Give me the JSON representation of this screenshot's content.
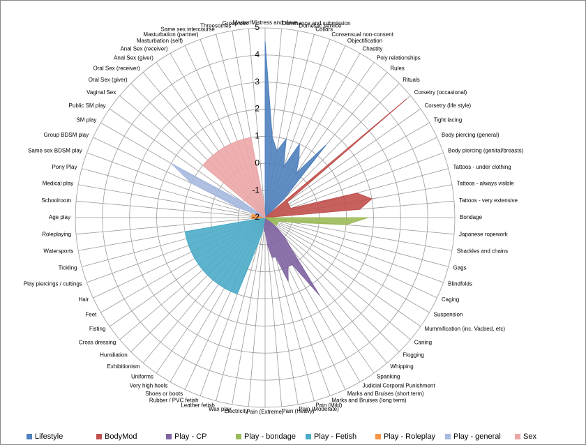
{
  "chart_data": {
    "type": "radar",
    "categories": [
      "Master/Mistress and slave",
      "Dominance and submission",
      "Domestic service",
      "Collars",
      "Consensual non-consent",
      "Objectification",
      "Chastity",
      "Poly relationships",
      "Rules",
      "Rituals",
      "Corsetry (occasional)",
      "Corsetry (life style)",
      "Tight lacing",
      "Body piercing (general)",
      "Body piercing (genital/breasts)",
      "Tattoos - under clothing",
      "Tattoos - always visible",
      "Tattoos - very extensive",
      "Bondage",
      "Japanese ropework",
      "Shackles and chains",
      "Gags",
      "Blindfolds",
      "Caging",
      "Suspension",
      "Mummification (inc. Vacbed, etc)",
      "Caning",
      "Flogging",
      "Whipping",
      "Spanking",
      "Judicial Corporal Punishment",
      "Marks and Bruises (short term)",
      "Marks and Bruises (long term)",
      "Pain (Mild)",
      "Pain (Moderate)",
      "Pain (Heavy)",
      "Pain (Extreme)",
      "Electricity",
      "Wax play",
      "Leather fetish",
      "Rubber / PVC fetish",
      "Shoes or boots",
      "Very high heels",
      "Uniforms",
      "Exhibitionism",
      "Humiliation",
      "Cross dressing",
      "Fisting",
      "Feet",
      "Hair",
      "Play piercings / cuttings",
      "Tickling",
      "Watersports",
      "Roleplaying",
      "Age play",
      "Schoolroom",
      "Medical play",
      "Pony Play",
      "Same sex BDSM play",
      "Group BDSM play",
      "SM play",
      "Public SM play",
      "Vaginal Sex",
      "Oral Sex (giver)",
      "Oral Sex (receiver)",
      "Anal Sex (giver)",
      "Anal Sex (receiver)",
      "Masturbation (self)",
      "Masturbation (partner)",
      "Same sex intercourse",
      "Threesomes",
      "Group sex"
    ],
    "series": [
      {
        "name": "Lifestyle",
        "color": "#4f81bd",
        "values": [
          4.5,
          1,
          0.5,
          1,
          0,
          1,
          0.5,
          0,
          1.5,
          -1,
          null,
          null,
          null,
          null,
          null,
          null,
          null,
          null,
          null,
          null,
          null,
          null,
          null,
          null,
          null,
          null,
          null,
          null,
          null,
          null,
          null,
          null,
          null,
          null,
          null,
          null,
          null,
          null,
          null,
          null,
          null,
          null,
          null,
          null,
          null,
          null,
          null,
          null,
          null,
          null,
          null,
          null,
          null,
          null,
          null,
          null,
          null,
          null,
          null,
          null,
          null,
          null,
          null,
          null,
          null,
          null,
          null,
          null,
          null,
          null,
          null,
          null
        ]
      },
      {
        "name": "BodyMod",
        "color": "#c0504d",
        "values": [
          null,
          null,
          null,
          null,
          null,
          null,
          null,
          null,
          null,
          null,
          4.8,
          -1,
          -1,
          -1,
          -1,
          1.5,
          2,
          1.5,
          null,
          null,
          null,
          null,
          null,
          null,
          null,
          null,
          null,
          null,
          null,
          null,
          null,
          null,
          null,
          null,
          null,
          null,
          null,
          null,
          null,
          null,
          null,
          null,
          null,
          null,
          null,
          null,
          null,
          null,
          null,
          null,
          null,
          null,
          null,
          null,
          null,
          null,
          null,
          null,
          null,
          null,
          null,
          null,
          null,
          null,
          null,
          null,
          null,
          null,
          null,
          null,
          null,
          null
        ]
      },
      {
        "name": "Play - CP",
        "color": "#8064a2",
        "values": [
          null,
          null,
          null,
          null,
          null,
          null,
          null,
          null,
          null,
          null,
          null,
          null,
          null,
          null,
          null,
          null,
          null,
          null,
          null,
          null,
          null,
          null,
          null,
          null,
          null,
          null,
          -1.5,
          -1,
          -0.5,
          1.5,
          0,
          0,
          0.5,
          -0.5,
          -0.5,
          -1,
          -1.5,
          -1.5,
          null,
          null,
          null,
          null,
          null,
          null,
          null,
          null,
          null,
          null,
          null,
          null,
          null,
          null,
          null,
          null,
          null,
          null,
          null,
          null,
          null,
          null,
          null,
          null,
          null,
          null,
          null,
          null,
          null,
          null,
          null,
          null,
          null,
          null
        ]
      },
      {
        "name": "Play - bondage",
        "color": "#9bbb59",
        "values": [
          null,
          null,
          null,
          null,
          null,
          null,
          null,
          null,
          null,
          null,
          null,
          null,
          null,
          null,
          null,
          null,
          null,
          null,
          1.8,
          1,
          -1,
          -1.5,
          -1.5,
          -1.5,
          -1.5,
          -1.5,
          null,
          null,
          null,
          null,
          null,
          null,
          null,
          null,
          null,
          null,
          null,
          null,
          null,
          null,
          null,
          null,
          null,
          null,
          null,
          null,
          null,
          null,
          null,
          null,
          null,
          null,
          null,
          null,
          null,
          null,
          null,
          null,
          null,
          null,
          null,
          null,
          null,
          null,
          null,
          null,
          null,
          null,
          null,
          null,
          null,
          null
        ]
      },
      {
        "name": "Play - Fetish",
        "color": "#4bacc6",
        "values": [
          null,
          null,
          null,
          null,
          null,
          null,
          null,
          null,
          null,
          null,
          null,
          null,
          null,
          null,
          null,
          null,
          null,
          null,
          null,
          null,
          null,
          null,
          null,
          null,
          null,
          null,
          null,
          null,
          null,
          null,
          null,
          null,
          null,
          null,
          null,
          null,
          null,
          null,
          -1.5,
          -1,
          1,
          1,
          1,
          1,
          1,
          1,
          1,
          1,
          1,
          1,
          1,
          1,
          1,
          null,
          null,
          null,
          null,
          null,
          null,
          null,
          null,
          null,
          null,
          null,
          null,
          null,
          null,
          null,
          null,
          null,
          null,
          null
        ]
      },
      {
        "name": "Play - Roleplay",
        "color": "#f79646",
        "values": [
          null,
          null,
          null,
          null,
          null,
          null,
          null,
          null,
          null,
          null,
          null,
          null,
          null,
          null,
          null,
          null,
          null,
          null,
          null,
          null,
          null,
          null,
          null,
          null,
          null,
          null,
          null,
          null,
          null,
          null,
          null,
          null,
          null,
          null,
          null,
          null,
          null,
          null,
          null,
          null,
          null,
          null,
          null,
          null,
          null,
          null,
          null,
          null,
          null,
          null,
          null,
          null,
          null,
          -1.5,
          -1.5,
          -1.5,
          -1.5,
          -1.5,
          null,
          null,
          null,
          null,
          null,
          null,
          null,
          null,
          null,
          null,
          null,
          null,
          null,
          null
        ]
      },
      {
        "name": "Play - general",
        "color": "#a6b9e0",
        "values": [
          null,
          null,
          null,
          null,
          null,
          null,
          null,
          null,
          null,
          null,
          null,
          null,
          null,
          null,
          null,
          null,
          null,
          null,
          null,
          null,
          null,
          null,
          null,
          null,
          null,
          null,
          null,
          null,
          null,
          null,
          null,
          null,
          null,
          null,
          null,
          null,
          null,
          null,
          null,
          null,
          null,
          null,
          null,
          null,
          null,
          null,
          null,
          null,
          null,
          null,
          null,
          null,
          null,
          null,
          null,
          null,
          null,
          null,
          -1,
          1,
          2,
          -1,
          null,
          null,
          null,
          null,
          null,
          null,
          null,
          null,
          null,
          null
        ]
      },
      {
        "name": "Sex",
        "color": "#eba6a6",
        "values": [
          null,
          null,
          null,
          null,
          null,
          null,
          null,
          null,
          null,
          null,
          null,
          null,
          null,
          null,
          null,
          null,
          null,
          null,
          null,
          null,
          null,
          null,
          null,
          null,
          null,
          null,
          null,
          null,
          null,
          null,
          null,
          null,
          null,
          null,
          null,
          null,
          null,
          null,
          null,
          null,
          null,
          null,
          null,
          null,
          null,
          null,
          null,
          null,
          null,
          null,
          null,
          null,
          null,
          null,
          null,
          null,
          null,
          null,
          null,
          null,
          null,
          null,
          1,
          1,
          1,
          1,
          1,
          1,
          1,
          1,
          1,
          -1.5
        ]
      }
    ],
    "ylim": [
      -2,
      5
    ],
    "yticks": [
      -2,
      -1,
      0,
      1,
      2,
      3,
      4,
      5
    ],
    "legend": "bottom"
  }
}
